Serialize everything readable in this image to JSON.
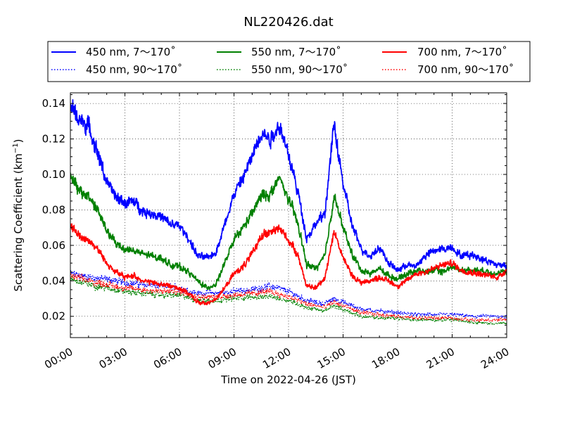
{
  "chart_data": {
    "type": "line",
    "title": "NL220426.dat",
    "xlabel": "Time on 2022-04-26 (JST)",
    "ylabel": "Scattering Coefficient (km",
    "ylabel_exponent": "−1",
    "ylabel_close": ")",
    "xlim": [
      "00:00",
      "24:00"
    ],
    "ylim": [
      0.008,
      0.146
    ],
    "grid": true,
    "grid_style": "dotted",
    "legend_placement": "top, outside plot",
    "x_tick_labels": [
      "00:00",
      "03:00",
      "06:00",
      "09:00",
      "12:00",
      "15:00",
      "18:00",
      "21:00",
      "24:00"
    ],
    "y_tick_labels": [
      "0.02",
      "0.04",
      "0.06",
      "0.08",
      "0.10",
      "0.12",
      "0.14"
    ],
    "y_tick_values": [
      0.02,
      0.04,
      0.06,
      0.08,
      0.1,
      0.12,
      0.14
    ],
    "series": [
      {
        "name": "450 nm, 7～170˚",
        "color": "#0000ff",
        "style": "solid",
        "x": [
          "00:00",
          "00:30",
          "01:00",
          "01:30",
          "02:00",
          "02:30",
          "03:00",
          "03:30",
          "04:00",
          "04:30",
          "05:00",
          "05:30",
          "06:00",
          "06:30",
          "07:00",
          "07:30",
          "08:00",
          "08:30",
          "09:00",
          "09:30",
          "10:00",
          "10:30",
          "11:00",
          "11:30",
          "12:00",
          "12:30",
          "13:00",
          "13:30",
          "14:00",
          "14:30",
          "15:00",
          "15:30",
          "16:00",
          "16:30",
          "17:00",
          "17:30",
          "18:00",
          "18:30",
          "19:00",
          "19:30",
          "20:00",
          "20:30",
          "21:00",
          "21:30",
          "22:00",
          "22:30",
          "23:00",
          "23:30",
          "24:00"
        ],
        "values": [
          0.138,
          0.131,
          0.127,
          0.112,
          0.096,
          0.087,
          0.084,
          0.085,
          0.079,
          0.078,
          0.076,
          0.072,
          0.071,
          0.064,
          0.054,
          0.053,
          0.056,
          0.072,
          0.089,
          0.098,
          0.11,
          0.124,
          0.12,
          0.128,
          0.111,
          0.091,
          0.064,
          0.072,
          0.078,
          0.128,
          0.095,
          0.071,
          0.058,
          0.054,
          0.059,
          0.05,
          0.046,
          0.049,
          0.048,
          0.054,
          0.057,
          0.058,
          0.059,
          0.054,
          0.055,
          0.053,
          0.051,
          0.049,
          0.049
        ]
      },
      {
        "name": "450 nm, 90～170˚",
        "color": "#0000ff",
        "style": "dotted",
        "x": [
          "00:00",
          "01:00",
          "02:00",
          "03:00",
          "04:00",
          "05:00",
          "06:00",
          "07:00",
          "08:00",
          "09:00",
          "10:00",
          "11:00",
          "12:00",
          "13:00",
          "14:00",
          "14:30",
          "15:00",
          "16:00",
          "17:00",
          "18:00",
          "19:00",
          "20:00",
          "21:00",
          "22:00",
          "23:00",
          "24:00"
        ],
        "values": [
          0.044,
          0.042,
          0.041,
          0.039,
          0.038,
          0.037,
          0.036,
          0.033,
          0.033,
          0.034,
          0.035,
          0.037,
          0.034,
          0.029,
          0.027,
          0.03,
          0.028,
          0.024,
          0.023,
          0.022,
          0.021,
          0.021,
          0.021,
          0.02,
          0.02,
          0.02
        ]
      },
      {
        "name": "550 nm, 7～170˚",
        "color": "#008000",
        "style": "solid",
        "x": [
          "00:00",
          "00:30",
          "01:00",
          "01:30",
          "02:00",
          "02:30",
          "03:00",
          "03:30",
          "04:00",
          "04:30",
          "05:00",
          "05:30",
          "06:00",
          "06:30",
          "07:00",
          "07:30",
          "08:00",
          "08:30",
          "09:00",
          "09:30",
          "10:00",
          "10:30",
          "11:00",
          "11:30",
          "12:00",
          "12:30",
          "13:00",
          "13:30",
          "14:00",
          "14:30",
          "15:00",
          "15:30",
          "16:00",
          "16:30",
          "17:00",
          "17:30",
          "18:00",
          "18:30",
          "19:00",
          "19:30",
          "20:00",
          "20:30",
          "21:00",
          "21:30",
          "22:00",
          "22:30",
          "23:00",
          "23:30",
          "24:00"
        ],
        "values": [
          0.1,
          0.09,
          0.088,
          0.08,
          0.068,
          0.061,
          0.058,
          0.057,
          0.055,
          0.054,
          0.053,
          0.049,
          0.048,
          0.045,
          0.04,
          0.036,
          0.038,
          0.05,
          0.063,
          0.07,
          0.078,
          0.088,
          0.089,
          0.098,
          0.086,
          0.073,
          0.049,
          0.047,
          0.054,
          0.088,
          0.07,
          0.055,
          0.046,
          0.044,
          0.047,
          0.043,
          0.041,
          0.044,
          0.046,
          0.045,
          0.046,
          0.045,
          0.048,
          0.046,
          0.046,
          0.046,
          0.045,
          0.044,
          0.045
        ]
      },
      {
        "name": "550 nm, 90～170˚",
        "color": "#008000",
        "style": "dotted",
        "x": [
          "00:00",
          "01:00",
          "02:00",
          "03:00",
          "04:00",
          "05:00",
          "06:00",
          "07:00",
          "08:00",
          "09:00",
          "10:00",
          "11:00",
          "12:00",
          "13:00",
          "14:00",
          "14:30",
          "15:00",
          "16:00",
          "17:00",
          "18:00",
          "19:00",
          "20:00",
          "21:00",
          "22:00",
          "23:00",
          "24:00"
        ],
        "values": [
          0.041,
          0.038,
          0.036,
          0.034,
          0.033,
          0.032,
          0.032,
          0.029,
          0.029,
          0.03,
          0.031,
          0.031,
          0.029,
          0.025,
          0.023,
          0.026,
          0.024,
          0.02,
          0.019,
          0.019,
          0.018,
          0.018,
          0.018,
          0.017,
          0.016,
          0.016
        ]
      },
      {
        "name": "700 nm, 7～170˚",
        "color": "#ff0000",
        "style": "solid",
        "x": [
          "00:00",
          "00:30",
          "01:00",
          "01:30",
          "02:00",
          "02:30",
          "03:00",
          "03:30",
          "04:00",
          "04:30",
          "05:00",
          "05:30",
          "06:00",
          "06:30",
          "07:00",
          "07:30",
          "08:00",
          "08:30",
          "09:00",
          "09:30",
          "10:00",
          "10:30",
          "11:00",
          "11:30",
          "12:00",
          "12:30",
          "13:00",
          "13:30",
          "14:00",
          "14:30",
          "15:00",
          "15:30",
          "16:00",
          "16:30",
          "17:00",
          "17:30",
          "18:00",
          "18:30",
          "19:00",
          "19:30",
          "20:00",
          "20:30",
          "21:00",
          "21:30",
          "22:00",
          "22:30",
          "23:00",
          "23:30",
          "24:00"
        ],
        "values": [
          0.072,
          0.065,
          0.063,
          0.058,
          0.05,
          0.045,
          0.042,
          0.043,
          0.04,
          0.039,
          0.038,
          0.037,
          0.036,
          0.033,
          0.028,
          0.027,
          0.03,
          0.036,
          0.044,
          0.048,
          0.055,
          0.066,
          0.067,
          0.07,
          0.063,
          0.055,
          0.037,
          0.036,
          0.042,
          0.068,
          0.053,
          0.043,
          0.039,
          0.04,
          0.042,
          0.04,
          0.037,
          0.04,
          0.044,
          0.045,
          0.047,
          0.049,
          0.05,
          0.046,
          0.045,
          0.044,
          0.043,
          0.042,
          0.046
        ]
      },
      {
        "name": "700 nm, 90～170˚",
        "color": "#ff0000",
        "style": "dotted",
        "x": [
          "00:00",
          "01:00",
          "02:00",
          "03:00",
          "04:00",
          "05:00",
          "06:00",
          "07:00",
          "08:00",
          "09:00",
          "10:00",
          "11:00",
          "12:00",
          "13:00",
          "14:00",
          "14:30",
          "15:00",
          "16:00",
          "17:00",
          "18:00",
          "19:00",
          "20:00",
          "21:00",
          "22:00",
          "23:00",
          "24:00"
        ],
        "values": [
          0.043,
          0.04,
          0.038,
          0.036,
          0.035,
          0.034,
          0.034,
          0.031,
          0.031,
          0.032,
          0.033,
          0.034,
          0.031,
          0.027,
          0.025,
          0.028,
          0.026,
          0.022,
          0.021,
          0.02,
          0.019,
          0.019,
          0.019,
          0.018,
          0.018,
          0.018
        ]
      }
    ]
  }
}
